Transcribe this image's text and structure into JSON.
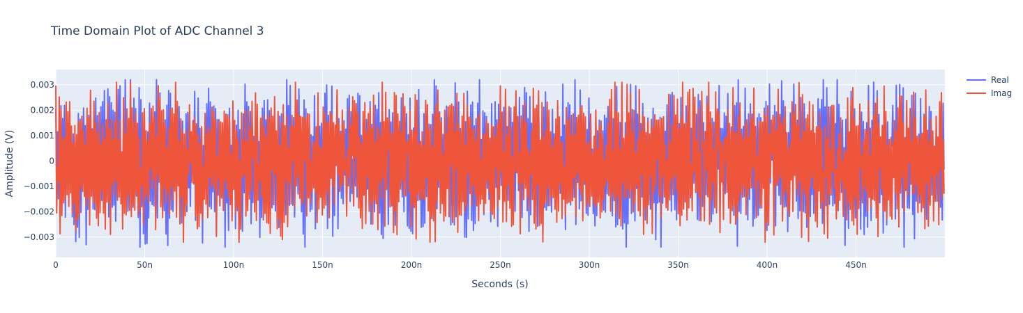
{
  "chart_data": {
    "type": "line",
    "title": "Time Domain Plot of ADC Channel 3",
    "xlabel": "Seconds (s)",
    "ylabel": "Amplitude (V)",
    "x_unit_suffix": "n",
    "xlim": [
      0,
      500
    ],
    "ylim": [
      -0.0038,
      0.0036
    ],
    "x_ticks": [
      0,
      50,
      100,
      150,
      200,
      250,
      300,
      350,
      400,
      450
    ],
    "x_tick_labels": [
      "0",
      "50n",
      "100n",
      "150n",
      "200n",
      "250n",
      "300n",
      "350n",
      "400n",
      "450n"
    ],
    "y_ticks": [
      -0.003,
      -0.002,
      -0.001,
      0,
      0.001,
      0.002,
      0.003
    ],
    "y_tick_labels": [
      "−0.003",
      "−0.002",
      "−0.001",
      "0",
      "0.001",
      "0.002",
      "0.003"
    ],
    "grid": true,
    "legend_position": "top-right",
    "sample_count": 1024,
    "series": [
      {
        "name": "Real",
        "color": "#636efa",
        "peak_positive": 0.0032,
        "peak_negative": -0.0034,
        "description_x": [
          0,
          499.5
        ],
        "note": "dense noise-like oscillation between approx -0.0034 and 0.0032 across 0 to 500n"
      },
      {
        "name": "Imag",
        "color": "#ef553b",
        "peak_positive": 0.0031,
        "peak_negative": -0.0032,
        "description_x": [
          0,
          499.5
        ],
        "note": "dense noise-like oscillation between approx -0.0032 and 0.0031 across 0 to 500n"
      }
    ]
  },
  "colors": {
    "plot_background": "#e5ecf6",
    "grid": "#ffffff",
    "text": "#2a3f5f"
  }
}
